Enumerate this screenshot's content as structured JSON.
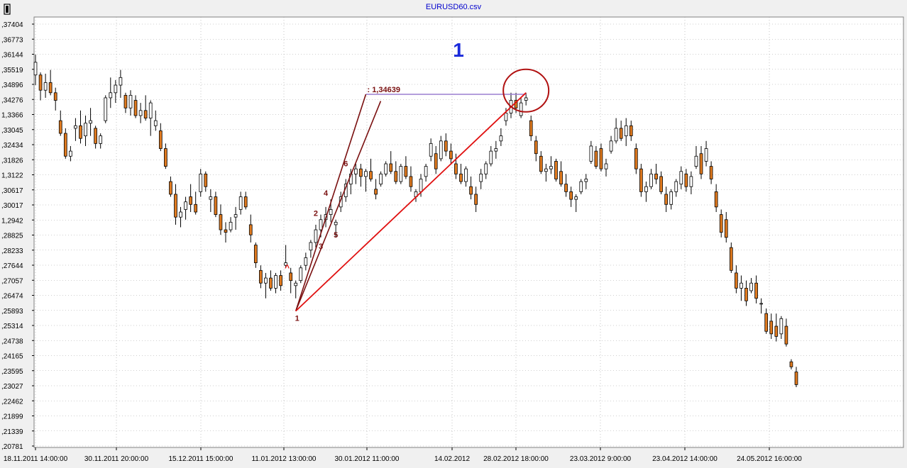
{
  "window": {
    "title": "EURUSD60.csv",
    "big_label": "1",
    "colors": {
      "background": "#f0f0f0",
      "plot_background": "#ffffff",
      "grid": "#a0a0a0",
      "up_candle": "#ffffff",
      "down_candle": "#e07a1f",
      "candle_outline": "#000000",
      "wave_lines": "#7a1010",
      "red_line": "#e01010",
      "level_line": "#9b7fd0",
      "title_color": "#0000cc",
      "big_label_color": "#1a2adb",
      "wave_label_color": "#7a1010"
    }
  },
  "chart_data": {
    "type": "candlestick",
    "title": "EURUSD60.csv",
    "ylim": [
      1.20781,
      1.37404
    ],
    "y_ticks": [
      ",37404",
      ",36773",
      ",36144",
      ",35519",
      ",34896",
      ",34276",
      "1,3366",
      ",33045",
      ",32434",
      ",31826",
      "1,3122",
      ",30617",
      ",30017",
      "1,2942",
      ",28825",
      ",28233",
      ",27644",
      ",27057",
      ",26474",
      ",25893",
      ",25314",
      ",24738",
      ",24165",
      ",23595",
      ",23027",
      ",22462",
      ",21899",
      ",21339",
      ",20781"
    ],
    "x_ticks": [
      "18.11.2011 14:00:00",
      "30.11.2011 20:00:00",
      "15.12.2011 15:00:00",
      "11.01.2012 13:00:00",
      "30.01.2012 11:00:00",
      "14.02.2012",
      "28.02.2012 18:00:00",
      "23.03.2012 9:00:00",
      "23.04.2012 14:00:00",
      "24.05.2012 16:00:00"
    ],
    "grid": true,
    "candles": [
      [
        1.354,
        1.362,
        1.35,
        1.359
      ],
      [
        1.354,
        1.355,
        1.344,
        1.348
      ],
      [
        1.348,
        1.3545,
        1.345,
        1.351
      ],
      [
        1.351,
        1.356,
        1.346,
        1.347
      ],
      [
        1.347,
        1.349,
        1.34,
        1.344
      ],
      [
        1.336,
        1.34,
        1.33,
        1.331
      ],
      [
        1.331,
        1.333,
        1.321,
        1.322
      ],
      [
        1.322,
        1.326,
        1.32,
        1.324
      ],
      [
        1.333,
        1.337,
        1.328,
        1.334
      ],
      [
        1.334,
        1.34,
        1.327,
        1.329
      ],
      [
        1.33,
        1.338,
        1.326,
        1.335
      ],
      [
        1.335,
        1.341,
        1.33,
        1.336
      ],
      [
        1.333,
        1.334,
        1.325,
        1.327
      ],
      [
        1.327,
        1.331,
        1.325,
        1.33
      ],
      [
        1.336,
        1.346,
        1.335,
        1.345
      ],
      [
        1.345,
        1.353,
        1.341,
        1.347
      ],
      [
        1.347,
        1.352,
        1.343,
        1.35
      ],
      [
        1.35,
        1.356,
        1.345,
        1.353
      ],
      [
        1.346,
        1.347,
        1.339,
        1.341
      ],
      [
        1.341,
        1.348,
        1.338,
        1.346
      ],
      [
        1.344,
        1.346,
        1.337,
        1.338
      ],
      [
        1.338,
        1.343,
        1.335,
        1.34
      ],
      [
        1.34,
        1.346,
        1.336,
        1.337
      ],
      [
        1.337,
        1.344,
        1.33,
        1.343
      ],
      [
        1.334,
        1.34,
        1.332,
        1.336
      ],
      [
        1.332,
        1.335,
        1.324,
        1.325
      ],
      [
        1.325,
        1.327,
        1.317,
        1.318
      ],
      [
        1.312,
        1.314,
        1.306,
        1.307
      ],
      [
        1.307,
        1.311,
        1.295,
        1.298
      ],
      [
        1.298,
        1.302,
        1.294,
        1.3
      ],
      [
        1.301,
        1.306,
        1.297,
        1.304
      ],
      [
        1.306,
        1.311,
        1.3,
        1.303
      ],
      [
        1.303,
        1.308,
        1.299,
        1.3
      ],
      [
        1.308,
        1.317,
        1.306,
        1.315
      ],
      [
        1.315,
        1.316,
        1.308,
        1.31
      ],
      [
        1.305,
        1.309,
        1.3,
        1.306
      ],
      [
        1.306,
        1.308,
        1.298,
        1.299
      ],
      [
        1.299,
        1.303,
        1.291,
        1.293
      ],
      [
        1.293,
        1.296,
        1.288,
        1.292
      ],
      [
        1.293,
        1.298,
        1.292,
        1.296
      ],
      [
        1.298,
        1.302,
        1.293,
        1.299
      ],
      [
        1.301,
        1.308,
        1.299,
        1.306
      ],
      [
        1.306,
        1.308,
        1.301,
        1.302
      ],
      [
        1.295,
        1.299,
        1.288,
        1.291
      ],
      [
        1.287,
        1.288,
        1.278,
        1.28
      ],
      [
        1.277,
        1.279,
        1.27,
        1.272
      ],
      [
        1.272,
        1.276,
        1.266,
        1.274
      ],
      [
        1.274,
        1.277,
        1.269,
        1.27
      ],
      [
        1.27,
        1.276,
        1.268,
        1.275
      ],
      [
        1.275,
        1.277,
        1.269,
        1.271
      ],
      [
        1.279,
        1.287,
        1.278,
        1.28
      ],
      [
        1.276,
        1.278,
        1.268,
        1.273
      ],
      [
        1.271,
        1.273,
        1.266,
        1.272
      ],
      [
        1.273,
        1.279,
        1.272,
        1.278
      ],
      [
        1.279,
        1.284,
        1.277,
        1.282
      ],
      [
        1.285,
        1.289,
        1.282,
        1.288
      ],
      [
        1.288,
        1.295,
        1.286,
        1.293
      ],
      [
        1.293,
        1.299,
        1.29,
        1.297
      ],
      [
        1.297,
        1.302,
        1.294,
        1.299
      ],
      [
        1.299,
        1.305,
        1.296,
        1.301
      ],
      [
        1.295,
        1.297,
        1.29,
        1.296
      ],
      [
        1.302,
        1.308,
        1.3,
        1.306
      ],
      [
        1.306,
        1.313,
        1.304,
        1.311
      ],
      [
        1.311,
        1.317,
        1.307,
        1.315
      ],
      [
        1.315,
        1.319,
        1.311,
        1.317
      ],
      [
        1.317,
        1.319,
        1.31,
        1.314
      ],
      [
        1.314,
        1.317,
        1.308,
        1.316
      ],
      [
        1.316,
        1.321,
        1.312,
        1.313
      ],
      [
        1.309,
        1.313,
        1.305,
        1.307
      ],
      [
        1.311,
        1.316,
        1.31,
        1.315
      ],
      [
        1.315,
        1.32,
        1.314,
        1.319
      ],
      [
        1.319,
        1.324,
        1.315,
        1.316
      ],
      [
        1.316,
        1.32,
        1.311,
        1.312
      ],
      [
        1.312,
        1.319,
        1.311,
        1.318
      ],
      [
        1.318,
        1.322,
        1.313,
        1.314
      ],
      [
        1.314,
        1.318,
        1.308,
        1.31
      ],
      [
        1.306,
        1.309,
        1.304,
        1.308
      ],
      [
        1.308,
        1.315,
        1.306,
        1.313
      ],
      [
        1.314,
        1.319,
        1.312,
        1.318
      ],
      [
        1.322,
        1.329,
        1.32,
        1.327
      ],
      [
        1.323,
        1.326,
        1.315,
        1.317
      ],
      [
        1.321,
        1.33,
        1.32,
        1.328
      ],
      [
        1.328,
        1.331,
        1.322,
        1.324
      ],
      [
        1.324,
        1.327,
        1.319,
        1.321
      ],
      [
        1.319,
        1.323,
        1.313,
        1.315
      ],
      [
        1.315,
        1.319,
        1.311,
        1.312
      ],
      [
        1.312,
        1.318,
        1.31,
        1.317
      ],
      [
        1.31,
        1.314,
        1.305,
        1.307
      ],
      [
        1.307,
        1.31,
        1.3,
        1.303
      ],
      [
        1.312,
        1.317,
        1.309,
        1.315
      ],
      [
        1.315,
        1.32,
        1.313,
        1.319
      ],
      [
        1.319,
        1.326,
        1.318,
        1.324
      ],
      [
        1.324,
        1.328,
        1.321,
        1.325
      ],
      [
        1.328,
        1.333,
        1.326,
        1.33
      ],
      [
        1.336,
        1.341,
        1.334,
        1.339
      ],
      [
        1.339,
        1.347,
        1.337,
        1.344
      ],
      [
        1.344,
        1.347,
        1.339,
        1.341
      ],
      [
        1.338,
        1.345,
        1.337,
        1.343
      ],
      [
        1.344,
        1.347,
        1.342,
        1.345
      ],
      [
        1.336,
        1.338,
        1.328,
        1.33
      ],
      [
        1.328,
        1.33,
        1.32,
        1.323
      ],
      [
        1.322,
        1.324,
        1.315,
        1.316
      ],
      [
        1.316,
        1.319,
        1.312,
        1.317
      ],
      [
        1.317,
        1.322,
        1.315,
        1.318
      ],
      [
        1.32,
        1.321,
        1.312,
        1.313
      ],
      [
        1.316,
        1.32,
        1.31,
        1.311
      ],
      [
        1.311,
        1.315,
        1.306,
        1.308
      ],
      [
        1.308,
        1.31,
        1.302,
        1.305
      ],
      [
        1.305,
        1.307,
        1.3,
        1.306
      ],
      [
        1.308,
        1.313,
        1.307,
        1.312
      ],
      [
        1.312,
        1.315,
        1.309,
        1.313
      ],
      [
        1.32,
        1.328,
        1.319,
        1.326
      ],
      [
        1.324,
        1.326,
        1.317,
        1.318
      ],
      [
        1.325,
        1.327,
        1.316,
        1.317
      ],
      [
        1.317,
        1.321,
        1.314,
        1.319
      ],
      [
        1.324,
        1.33,
        1.323,
        1.328
      ],
      [
        1.328,
        1.337,
        1.327,
        1.333
      ],
      [
        1.333,
        1.336,
        1.328,
        1.329
      ],
      [
        1.33,
        1.337,
        1.326,
        1.334
      ],
      [
        1.334,
        1.336,
        1.328,
        1.33
      ],
      [
        1.325,
        1.327,
        1.315,
        1.317
      ],
      [
        1.317,
        1.319,
        1.306,
        1.308
      ],
      [
        1.308,
        1.312,
        1.304,
        1.31
      ],
      [
        1.31,
        1.317,
        1.309,
        1.315
      ],
      [
        1.315,
        1.319,
        1.311,
        1.313
      ],
      [
        1.314,
        1.316,
        1.307,
        1.308
      ],
      [
        1.307,
        1.31,
        1.3,
        1.303
      ],
      [
        1.303,
        1.309,
        1.301,
        1.308
      ],
      [
        1.308,
        1.313,
        1.306,
        1.312
      ],
      [
        1.311,
        1.318,
        1.309,
        1.316
      ],
      [
        1.315,
        1.317,
        1.308,
        1.31
      ],
      [
        1.31,
        1.316,
        1.307,
        1.314
      ],
      [
        1.318,
        1.326,
        1.317,
        1.322
      ],
      [
        1.323,
        1.326,
        1.313,
        1.315
      ],
      [
        1.32,
        1.328,
        1.318,
        1.325
      ],
      [
        1.318,
        1.32,
        1.311,
        1.313
      ],
      [
        1.308,
        1.311,
        1.3,
        1.302
      ],
      [
        1.299,
        1.301,
        1.29,
        1.292
      ],
      [
        1.297,
        1.3,
        1.288,
        1.29
      ],
      [
        1.286,
        1.288,
        1.276,
        1.277
      ],
      [
        1.276,
        1.279,
        1.268,
        1.27
      ],
      [
        1.27,
        1.275,
        1.265,
        1.272
      ],
      [
        1.27,
        1.273,
        1.263,
        1.265
      ],
      [
        1.269,
        1.274,
        1.268,
        1.272
      ],
      [
        1.272,
        1.275,
        1.264,
        1.266
      ],
      [
        1.264,
        1.266,
        1.26,
        1.264
      ],
      [
        1.26,
        1.262,
        1.252,
        1.253
      ],
      [
        1.257,
        1.26,
        1.25,
        1.252
      ],
      [
        1.255,
        1.26,
        1.249,
        1.251
      ],
      [
        1.252,
        1.259,
        1.25,
        1.258
      ],
      [
        1.255,
        1.258,
        1.247,
        1.248
      ],
      [
        1.241,
        1.242,
        1.238,
        1.239
      ],
      [
        1.237,
        1.239,
        1.231,
        1.232
      ]
    ],
    "annotations": {
      "level_label": ": 1,34639",
      "wave_labels": [
        "1",
        "2",
        "3",
        "4",
        "5",
        "6"
      ],
      "red_arrow_label": "^",
      "start_label": "1"
    }
  }
}
